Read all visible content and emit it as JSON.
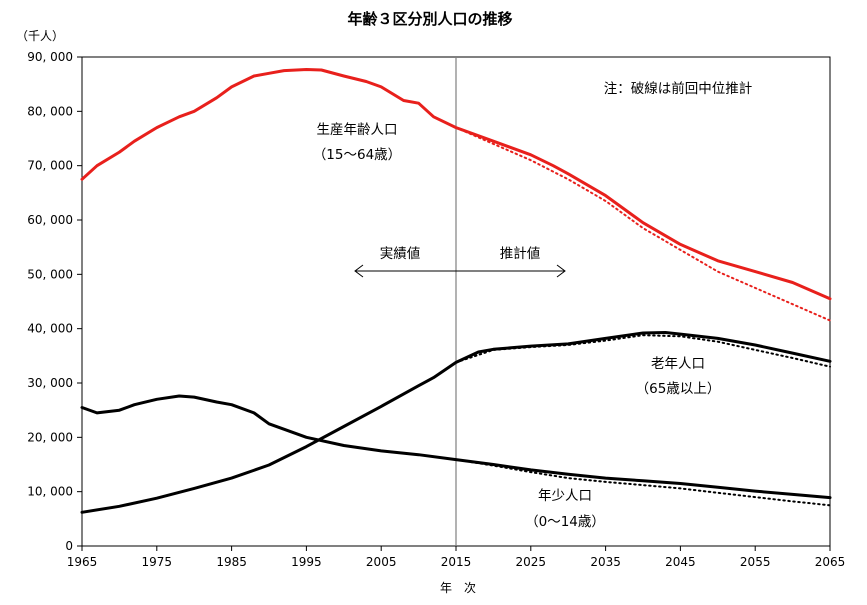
{
  "chart_data": {
    "type": "line",
    "title": "年齢３区分別人口の推移",
    "ylabel": "（千人）",
    "xlabel": "年　次",
    "xlim": [
      1965,
      2065
    ],
    "ylim": [
      0,
      90000
    ],
    "grid": false,
    "x_ticks": [
      "1965",
      "1975",
      "1985",
      "1995",
      "2005",
      "2015",
      "2025",
      "2035",
      "2045",
      "2055",
      "2065"
    ],
    "y_ticks": [
      "0",
      "10, 000",
      "20, 000",
      "30, 000",
      "40, 000",
      "50, 000",
      "60, 000",
      "70, 000",
      "80, 000",
      "90, 000"
    ],
    "note": "注：破線は前回中位推計",
    "divider_year": 2015,
    "actual_label": "実績値",
    "projection_label": "推計値",
    "colors": {
      "working": "#e8201c",
      "other": "#000000",
      "divider": "#808080"
    },
    "series": [
      {
        "label_lines": [
          "生産年齢人口",
          "（15～64歳）"
        ],
        "color": "#e8201c",
        "style": "solid",
        "points": [
          [
            1965,
            67500
          ],
          [
            1967,
            70000
          ],
          [
            1970,
            72500
          ],
          [
            1972,
            74500
          ],
          [
            1975,
            77000
          ],
          [
            1978,
            79000
          ],
          [
            1980,
            80000
          ],
          [
            1983,
            82500
          ],
          [
            1985,
            84500
          ],
          [
            1988,
            86500
          ],
          [
            1990,
            87000
          ],
          [
            1992,
            87500
          ],
          [
            1995,
            87700
          ],
          [
            1997,
            87600
          ],
          [
            2000,
            86500
          ],
          [
            2003,
            85500
          ],
          [
            2005,
            84500
          ],
          [
            2008,
            82000
          ],
          [
            2010,
            81500
          ],
          [
            2012,
            79000
          ],
          [
            2015,
            77000
          ],
          [
            2020,
            74500
          ],
          [
            2025,
            72000
          ],
          [
            2028,
            70000
          ],
          [
            2030,
            68500
          ],
          [
            2035,
            64500
          ],
          [
            2040,
            59500
          ],
          [
            2045,
            55500
          ],
          [
            2050,
            52500
          ],
          [
            2055,
            50500
          ],
          [
            2060,
            48500
          ],
          [
            2065,
            45500
          ]
        ]
      },
      {
        "name": "previous-projection-working-age",
        "color": "#e8201c",
        "style": "dotted",
        "points": [
          [
            2015,
            77000
          ],
          [
            2020,
            74000
          ],
          [
            2025,
            71000
          ],
          [
            2030,
            67500
          ],
          [
            2035,
            63500
          ],
          [
            2040,
            58500
          ],
          [
            2045,
            54500
          ],
          [
            2050,
            50500
          ],
          [
            2055,
            47500
          ],
          [
            2060,
            44500
          ],
          [
            2065,
            41500
          ]
        ]
      },
      {
        "label_lines": [
          "老年人口",
          "（65歳以上）"
        ],
        "color": "#000000",
        "style": "solid",
        "points": [
          [
            1965,
            6200
          ],
          [
            1970,
            7300
          ],
          [
            1975,
            8800
          ],
          [
            1980,
            10600
          ],
          [
            1985,
            12500
          ],
          [
            1990,
            14900
          ],
          [
            1995,
            18300
          ],
          [
            2000,
            22000
          ],
          [
            2005,
            25700
          ],
          [
            2010,
            29500
          ],
          [
            2012,
            31000
          ],
          [
            2015,
            33800
          ],
          [
            2018,
            35700
          ],
          [
            2020,
            36200
          ],
          [
            2025,
            36800
          ],
          [
            2030,
            37200
          ],
          [
            2035,
            38200
          ],
          [
            2040,
            39200
          ],
          [
            2043,
            39300
          ],
          [
            2045,
            39000
          ],
          [
            2050,
            38200
          ],
          [
            2055,
            37000
          ],
          [
            2060,
            35500
          ],
          [
            2065,
            34000
          ]
        ]
      },
      {
        "name": "previous-projection-elderly",
        "color": "#000000",
        "style": "dotted",
        "points": [
          [
            2015,
            33800
          ],
          [
            2020,
            36100
          ],
          [
            2025,
            36600
          ],
          [
            2030,
            37000
          ],
          [
            2035,
            37800
          ],
          [
            2040,
            38800
          ],
          [
            2045,
            38600
          ],
          [
            2050,
            37600
          ],
          [
            2055,
            36100
          ],
          [
            2060,
            34600
          ],
          [
            2065,
            33000
          ]
        ]
      },
      {
        "label_lines": [
          "年少人口",
          "（0～14歳）"
        ],
        "color": "#000000",
        "style": "solid",
        "points": [
          [
            1965,
            25500
          ],
          [
            1967,
            24500
          ],
          [
            1970,
            25000
          ],
          [
            1972,
            26000
          ],
          [
            1975,
            27000
          ],
          [
            1978,
            27600
          ],
          [
            1980,
            27400
          ],
          [
            1983,
            26500
          ],
          [
            1985,
            26000
          ],
          [
            1988,
            24500
          ],
          [
            1990,
            22500
          ],
          [
            1995,
            20000
          ],
          [
            2000,
            18500
          ],
          [
            2005,
            17500
          ],
          [
            2010,
            16800
          ],
          [
            2015,
            15900
          ],
          [
            2020,
            15000
          ],
          [
            2025,
            14000
          ],
          [
            2030,
            13200
          ],
          [
            2035,
            12500
          ],
          [
            2040,
            12000
          ],
          [
            2045,
            11500
          ],
          [
            2050,
            10800
          ],
          [
            2055,
            10100
          ],
          [
            2060,
            9500
          ],
          [
            2065,
            8900
          ]
        ]
      },
      {
        "name": "previous-projection-youth",
        "color": "#000000",
        "style": "dotted",
        "points": [
          [
            2015,
            15900
          ],
          [
            2020,
            14800
          ],
          [
            2025,
            13600
          ],
          [
            2030,
            12500
          ],
          [
            2035,
            11800
          ],
          [
            2040,
            11200
          ],
          [
            2045,
            10600
          ],
          [
            2050,
            9800
          ],
          [
            2055,
            9000
          ],
          [
            2060,
            8200
          ],
          [
            2065,
            7500
          ]
        ]
      }
    ]
  }
}
